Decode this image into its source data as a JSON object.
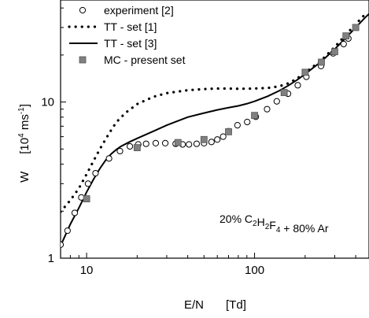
{
  "chart_data": {
    "type": "scatter",
    "xlabel": "E/N",
    "xunit": "[Td]",
    "ylabel": "W",
    "yunit_prefix": "[10",
    "yunit_exp": "4",
    "yunit_mid": " ms",
    "yunit_exp2": "-1",
    "yunit_suffix": "]",
    "xscale": "log",
    "yscale": "log",
    "xlim": [
      7,
      480
    ],
    "ylim": [
      1,
      45
    ],
    "xticks": [
      10,
      100
    ],
    "xtick_labels": [
      "10",
      "100"
    ],
    "yticks": [
      1,
      10
    ],
    "ytick_labels": [
      "1",
      "10"
    ],
    "grid": false,
    "legend_position": "top-left",
    "annotation": {
      "parts": [
        {
          "t": "20% C",
          "sub": false
        },
        {
          "t": "2",
          "sub": true
        },
        {
          "t": "H",
          "sub": false
        },
        {
          "t": "2",
          "sub": true
        },
        {
          "t": "F",
          "sub": false
        },
        {
          "t": "4",
          "sub": true
        },
        {
          "t": " + 80% Ar",
          "sub": false
        }
      ]
    },
    "series": [
      {
        "name": "experiment [2]",
        "style": "open-circle",
        "color": "#000000",
        "x": [
          7,
          7.7,
          8.5,
          9.3,
          10.2,
          11.3,
          13.6,
          15.8,
          18.1,
          20.3,
          22.6,
          25.8,
          29.4,
          33.9,
          37.3,
          40.7,
          45.2,
          50.0,
          55.4,
          60.0,
          65.0,
          70.1,
          79.1,
          90.4,
          101.7,
          118.7,
          135.6,
          158.2,
          180.8,
          203.4,
          248.6,
          293.8,
          339.0,
          361.6
        ],
        "y": [
          1.22,
          1.5,
          1.95,
          2.45,
          3.0,
          3.5,
          4.35,
          4.85,
          5.2,
          5.35,
          5.4,
          5.45,
          5.45,
          5.4,
          5.35,
          5.35,
          5.4,
          5.45,
          5.55,
          5.75,
          6.0,
          6.5,
          7.1,
          7.45,
          8.05,
          9.0,
          10.1,
          11.3,
          12.8,
          14.5,
          17.0,
          20.5,
          23.5,
          25.5
        ]
      },
      {
        "name": "TT - set [1]",
        "style": "dotted-line",
        "color": "#000000",
        "x": [
          7,
          8,
          9,
          10,
          11,
          12,
          13,
          14,
          15,
          17,
          20,
          25,
          30,
          40,
          50,
          60,
          70,
          80,
          100,
          120,
          140,
          160,
          180,
          200,
          250,
          300,
          350,
          400,
          450
        ],
        "y": [
          1.98,
          2.35,
          2.8,
          3.45,
          4.2,
          5.0,
          5.8,
          6.6,
          7.4,
          8.5,
          9.7,
          10.8,
          11.4,
          11.9,
          12.1,
          12.2,
          12.2,
          12.15,
          12.2,
          12.3,
          12.6,
          13.2,
          14.2,
          15.4,
          18.5,
          22.5,
          27.0,
          31.5,
          36.0
        ]
      },
      {
        "name": "TT - set [3]",
        "style": "solid-line",
        "color": "#000000",
        "x": [
          7,
          8,
          9,
          10,
          11,
          12,
          13,
          14,
          15,
          16,
          18,
          20,
          25,
          30,
          40,
          50,
          60,
          70,
          80,
          90,
          100,
          120,
          140,
          160,
          180,
          200,
          250,
          300,
          350,
          400,
          450,
          480
        ],
        "y": [
          1.2,
          1.65,
          2.1,
          2.65,
          3.2,
          3.75,
          4.25,
          4.65,
          4.95,
          5.2,
          5.55,
          5.85,
          6.5,
          7.1,
          8.0,
          8.5,
          8.9,
          9.2,
          9.45,
          9.75,
          10.1,
          10.9,
          11.8,
          12.8,
          13.9,
          15.1,
          18.2,
          21.8,
          25.8,
          30.0,
          34.3,
          36.7
        ]
      },
      {
        "name": "MC - present set",
        "style": "filled-square",
        "color": "#808080",
        "x": [
          10,
          20,
          35,
          50,
          70,
          100,
          150,
          200,
          250,
          300,
          350,
          400
        ],
        "y": [
          2.4,
          5.1,
          5.5,
          5.75,
          6.45,
          8.2,
          11.5,
          15.5,
          18.0,
          21.0,
          26.5,
          30.0
        ]
      }
    ]
  }
}
